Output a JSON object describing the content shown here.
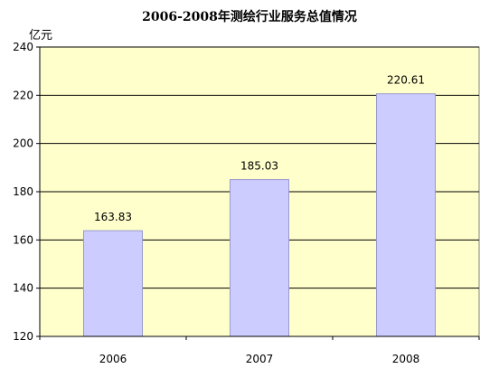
{
  "chart_data": {
    "type": "bar",
    "title": "2006-2008年测绘行业服务总值情况",
    "ylabel": "亿元",
    "xlabel": "",
    "categories": [
      "2006",
      "2007",
      "2008"
    ],
    "values": [
      163.83,
      185.03,
      220.61
    ],
    "value_labels": [
      "163.83",
      "185.03",
      "220.61"
    ],
    "ylim": [
      120,
      240
    ],
    "yticks": [
      120,
      140,
      160,
      180,
      200,
      220,
      240
    ],
    "grid": true,
    "legend": "none",
    "colors": {
      "bar_fill": "#ccccff",
      "bar_stroke": "#9999cc",
      "plot_bg": "#ffffcc",
      "grid": "#000000"
    }
  }
}
